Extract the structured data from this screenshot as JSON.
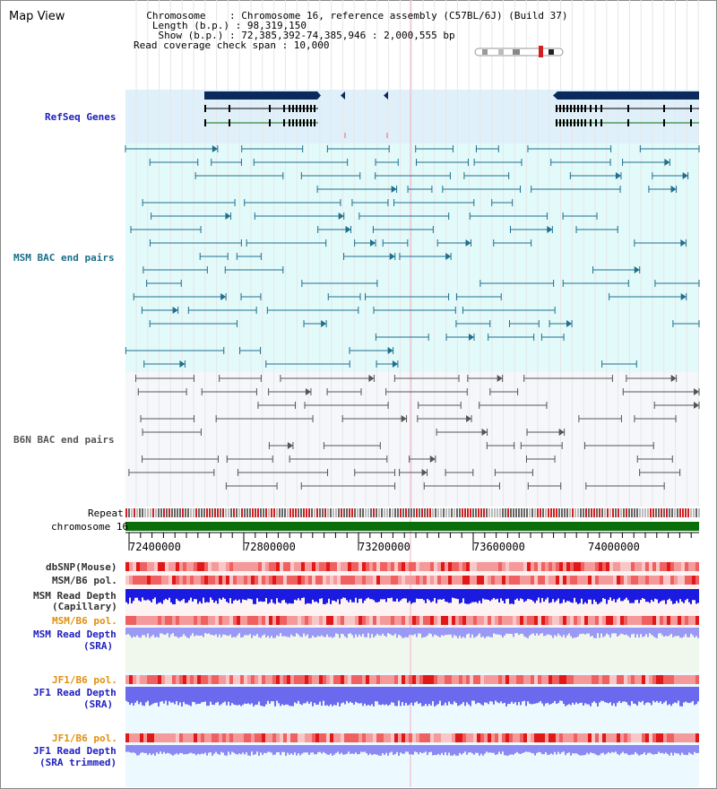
{
  "title": "Map View",
  "info": {
    "chromosome": "  Chromosome    : Chromosome 16, reference assembly (C57BL/6J) (Build 37)",
    "length": "   Length (b.p.) : 98,319,150",
    "show": "    Show (b.p.) : 72,385,392-74,385,946 : 2,000,555 bp",
    "coverage": "Read coverage check span : 10,000"
  },
  "tracks": {
    "refseq": "RefSeq Genes",
    "msm_bac": "MSM BAC end pairs",
    "b6n_bac": "B6N BAC end pairs",
    "repeat": "Repeat",
    "chromosome": "chromosome 16",
    "dbsnp": "dbSNP(Mouse)",
    "msm_pol": "MSM/B6 pol.",
    "msm_depth_cap_1": "MSM Read Depth",
    "msm_depth_cap_2": "(Capillary)",
    "msm_pol_sra": "MSM/B6 pol.",
    "msm_depth_sra_1": "MSM Read Depth",
    "msm_depth_sra_2": "(SRA)",
    "jf1_pol": "JF1/B6 pol.",
    "jf1_depth_1": "JF1 Read Depth",
    "jf1_depth_2": "(SRA)",
    "jf1_pol_trim": "JF1/B6 pol.",
    "jf1_trim_1": "JF1 Read Depth",
    "jf1_trim_2": "(SRA trimmed)"
  },
  "axis": {
    "ticks": [
      "72400000",
      "72800000",
      "73200000",
      "73600000",
      "74000000"
    ]
  },
  "colors": {
    "refseq_bg": "#dff0fa",
    "msm_bg": "#e3fafa",
    "b6n_bg": "#f5f7fb",
    "gene": "#0a2a5e",
    "msm_line": "#1f6f8f",
    "b6n_line": "#555555",
    "chromosome": "#0a6e0a",
    "depth": "#1a1ae0",
    "depth_light": "#8080f0",
    "pol_red": "#e82020",
    "label_blue": "#2020c0",
    "label_teal": "#1a6f8a",
    "label_orange": "#e09010"
  }
}
